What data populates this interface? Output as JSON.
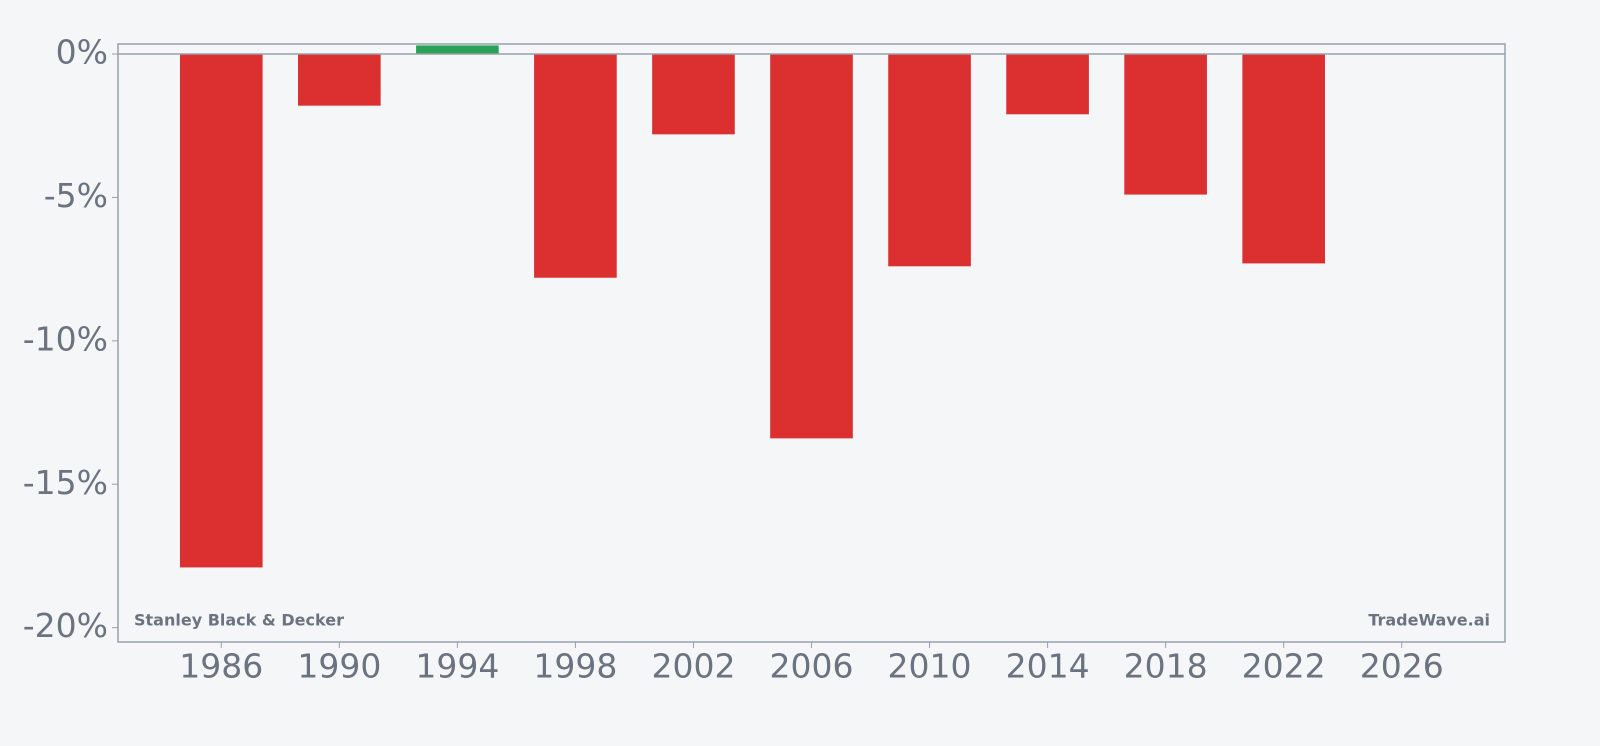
{
  "chart_data": {
    "type": "bar",
    "x": [
      1986,
      1990,
      1994,
      1998,
      2002,
      2006,
      2010,
      2014,
      2018,
      2022
    ],
    "values": [
      -17.9,
      -1.8,
      0.3,
      -7.8,
      -2.8,
      -13.4,
      -7.4,
      -2.1,
      -4.9,
      -7.3
    ],
    "positive_color": "#28a355",
    "negative_color": "#dc3030",
    "bar_width": 2.8,
    "xlim": [
      1982.5,
      2029.5
    ],
    "xticks": [
      1986,
      1990,
      1994,
      1998,
      2002,
      2006,
      2010,
      2014,
      2018,
      2022,
      2026
    ],
    "ylim": [
      -20.5,
      0.35
    ],
    "yticks": [
      {
        "value": 0,
        "label": "0%"
      },
      {
        "value": -5,
        "label": "-5%"
      },
      {
        "value": -10,
        "label": "-10%"
      },
      {
        "value": -15,
        "label": "-15%"
      },
      {
        "value": -20,
        "label": "-20%"
      }
    ],
    "grid": false,
    "annotations": [
      "Stanley Black & Decker",
      "TradeWave.ai"
    ]
  }
}
